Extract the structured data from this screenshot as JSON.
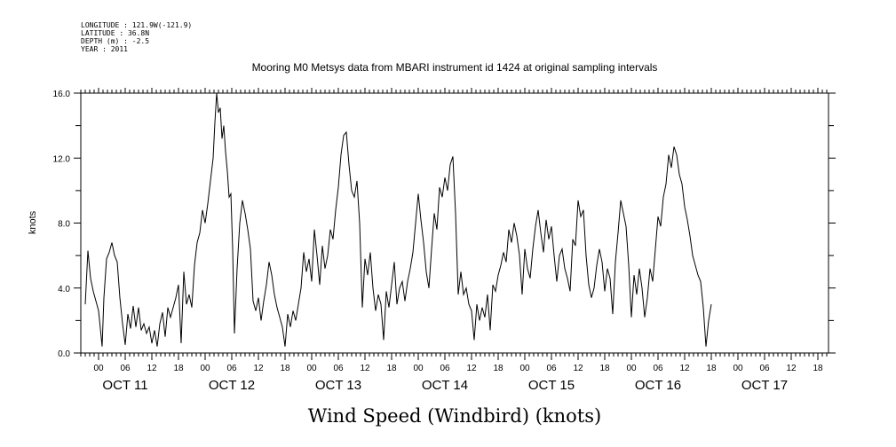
{
  "header": {
    "longitude": "LONGITUDE : 121.9W(-121.9)",
    "latitude": "LATITUDE : 36.8N",
    "depth": "DEPTH (m) : -2.5",
    "year": "YEAR : 2011"
  },
  "chart_data": {
    "type": "line",
    "title": "Mooring M0 Metsys data from MBARI instrument id 1424 at original sampling intervals",
    "xlabel": "Wind Speed (Windbird) (knots)",
    "ylabel": "knots",
    "ylim": [
      0,
      16
    ],
    "yticks": [
      "0.0",
      "4.0",
      "8.0",
      "12.0",
      "16.0"
    ],
    "x_unit": "hours from OCT 11 00:00, 2011",
    "xlim": [
      -18,
      138
    ],
    "hour_tick_labels": [
      {
        "h": 0,
        "label": "00"
      },
      {
        "h": 6,
        "label": "06"
      },
      {
        "h": 12,
        "label": "12"
      },
      {
        "h": 18,
        "label": "18"
      },
      {
        "h": 24,
        "label": "00"
      },
      {
        "h": 30,
        "label": "06"
      },
      {
        "h": 36,
        "label": "12"
      },
      {
        "h": 42,
        "label": "18"
      },
      {
        "h": 48,
        "label": "00"
      },
      {
        "h": 54,
        "label": "06"
      },
      {
        "h": 60,
        "label": "12"
      },
      {
        "h": 66,
        "label": "18"
      },
      {
        "h": 72,
        "label": "00"
      },
      {
        "h": 78,
        "label": "06"
      },
      {
        "h": 84,
        "label": "12"
      },
      {
        "h": 90,
        "label": "18"
      },
      {
        "h": 96,
        "label": "00"
      },
      {
        "h": 102,
        "label": "06"
      },
      {
        "h": 108,
        "label": "12"
      },
      {
        "h": 114,
        "label": "18"
      },
      {
        "h": 120,
        "label": "00"
      },
      {
        "h": 126,
        "label": "06"
      },
      {
        "h": 132,
        "label": "12"
      },
      {
        "h": 138,
        "label": "18"
      },
      {
        "h": 144,
        "label": "00"
      },
      {
        "h": 150,
        "label": "06"
      },
      {
        "h": 156,
        "label": "12"
      },
      {
        "h": 162,
        "label": "18"
      }
    ],
    "day_labels": [
      {
        "h": 6,
        "label": "OCT 11"
      },
      {
        "h": 30,
        "label": "OCT 12"
      },
      {
        "h": 54,
        "label": "OCT 13"
      },
      {
        "h": 78,
        "label": "OCT 14"
      },
      {
        "h": 102,
        "label": "OCT 15"
      },
      {
        "h": 126,
        "label": "OCT 16"
      },
      {
        "h": 150,
        "label": "OCT 17"
      }
    ],
    "grid": false,
    "series": [
      {
        "color": "#000000",
        "points": [
          [
            -3,
            3.0
          ],
          [
            -2.4,
            6.3
          ],
          [
            -1.8,
            4.6
          ],
          [
            -1.2,
            3.8
          ],
          [
            -0.6,
            3.2
          ],
          [
            0,
            2.6
          ],
          [
            0.4,
            1.5
          ],
          [
            0.8,
            0.4
          ],
          [
            1.2,
            3.4
          ],
          [
            1.8,
            5.8
          ],
          [
            2.4,
            6.2
          ],
          [
            3,
            6.8
          ],
          [
            3.6,
            6.0
          ],
          [
            4.2,
            5.6
          ],
          [
            4.8,
            3.4
          ],
          [
            5.4,
            1.8
          ],
          [
            6,
            0.5
          ],
          [
            6.6,
            2.4
          ],
          [
            7.2,
            1.5
          ],
          [
            7.8,
            2.9
          ],
          [
            8.4,
            1.6
          ],
          [
            9,
            2.8
          ],
          [
            9.6,
            1.4
          ],
          [
            10.2,
            1.8
          ],
          [
            10.8,
            1.2
          ],
          [
            11.4,
            1.6
          ],
          [
            12,
            0.6
          ],
          [
            12.6,
            1.4
          ],
          [
            13.2,
            0.4
          ],
          [
            13.8,
            1.8
          ],
          [
            14.4,
            2.5
          ],
          [
            15,
            1.0
          ],
          [
            15.6,
            2.8
          ],
          [
            16.2,
            2.2
          ],
          [
            16.8,
            2.8
          ],
          [
            17.4,
            3.4
          ],
          [
            18,
            4.2
          ],
          [
            18.6,
            0.6
          ],
          [
            19.2,
            5.0
          ],
          [
            19.8,
            3.0
          ],
          [
            20.4,
            3.6
          ],
          [
            21,
            2.8
          ],
          [
            21.6,
            5.4
          ],
          [
            22.2,
            6.8
          ],
          [
            22.8,
            7.4
          ],
          [
            23.4,
            8.8
          ],
          [
            24,
            8.0
          ],
          [
            24.6,
            9.2
          ],
          [
            25.2,
            10.6
          ],
          [
            25.8,
            12.0
          ],
          [
            26.2,
            14.2
          ],
          [
            26.6,
            16.0
          ],
          [
            27,
            14.8
          ],
          [
            27.4,
            15.1
          ],
          [
            27.8,
            13.2
          ],
          [
            28.2,
            14.0
          ],
          [
            28.6,
            12.4
          ],
          [
            29,
            11.2
          ],
          [
            29.4,
            9.6
          ],
          [
            29.8,
            9.8
          ],
          [
            30.2,
            6.4
          ],
          [
            30.6,
            1.2
          ],
          [
            31.2,
            5.2
          ],
          [
            31.8,
            8.0
          ],
          [
            32.4,
            9.4
          ],
          [
            33,
            8.6
          ],
          [
            33.6,
            7.6
          ],
          [
            34.2,
            6.4
          ],
          [
            34.8,
            3.2
          ],
          [
            35.4,
            2.6
          ],
          [
            36,
            3.4
          ],
          [
            36.6,
            2.0
          ],
          [
            37.2,
            3.2
          ],
          [
            37.8,
            4.2
          ],
          [
            38.4,
            5.6
          ],
          [
            39,
            4.8
          ],
          [
            39.6,
            3.6
          ],
          [
            40.2,
            2.8
          ],
          [
            40.8,
            2.2
          ],
          [
            41.4,
            1.6
          ],
          [
            42,
            0.4
          ],
          [
            42.6,
            2.4
          ],
          [
            43.2,
            1.6
          ],
          [
            43.8,
            2.6
          ],
          [
            44.4,
            2.0
          ],
          [
            45,
            3.0
          ],
          [
            45.6,
            4.0
          ],
          [
            46.2,
            6.2
          ],
          [
            46.8,
            5.0
          ],
          [
            47.4,
            5.8
          ],
          [
            48,
            4.4
          ],
          [
            48.6,
            7.6
          ],
          [
            49.2,
            6.0
          ],
          [
            49.8,
            4.2
          ],
          [
            50.4,
            6.6
          ],
          [
            51,
            5.2
          ],
          [
            51.6,
            6.0
          ],
          [
            52.2,
            7.6
          ],
          [
            52.8,
            7.0
          ],
          [
            53.4,
            8.8
          ],
          [
            54,
            10.2
          ],
          [
            54.6,
            12.2
          ],
          [
            55.2,
            13.4
          ],
          [
            55.8,
            13.6
          ],
          [
            56.4,
            11.6
          ],
          [
            57,
            10.0
          ],
          [
            57.6,
            9.6
          ],
          [
            58.2,
            10.6
          ],
          [
            58.8,
            8.0
          ],
          [
            59.4,
            2.8
          ],
          [
            60,
            5.8
          ],
          [
            60.6,
            4.8
          ],
          [
            61.2,
            6.2
          ],
          [
            61.8,
            4.0
          ],
          [
            62.4,
            2.6
          ],
          [
            63,
            3.6
          ],
          [
            63.6,
            3.0
          ],
          [
            64.2,
            0.8
          ],
          [
            64.8,
            3.8
          ],
          [
            65.4,
            2.8
          ],
          [
            66,
            4.2
          ],
          [
            66.6,
            5.6
          ],
          [
            67.2,
            3.0
          ],
          [
            67.8,
            4.0
          ],
          [
            68.4,
            4.4
          ],
          [
            69,
            3.2
          ],
          [
            69.6,
            4.4
          ],
          [
            70.2,
            5.2
          ],
          [
            70.8,
            6.2
          ],
          [
            71.4,
            8.0
          ],
          [
            72,
            9.8
          ],
          [
            72.6,
            8.2
          ],
          [
            73.2,
            6.8
          ],
          [
            73.8,
            5.0
          ],
          [
            74.4,
            4.0
          ],
          [
            75,
            6.4
          ],
          [
            75.6,
            8.6
          ],
          [
            76.2,
            7.6
          ],
          [
            76.8,
            10.2
          ],
          [
            77.4,
            9.6
          ],
          [
            78,
            10.8
          ],
          [
            78.6,
            10.0
          ],
          [
            79.2,
            11.6
          ],
          [
            79.8,
            12.1
          ],
          [
            80.4,
            8.6
          ],
          [
            81,
            3.6
          ],
          [
            81.6,
            5.0
          ],
          [
            82.2,
            3.6
          ],
          [
            82.8,
            4.0
          ],
          [
            83.4,
            3.0
          ],
          [
            84,
            2.6
          ],
          [
            84.6,
            0.8
          ],
          [
            85.2,
            3.0
          ],
          [
            85.8,
            2.0
          ],
          [
            86.4,
            2.8
          ],
          [
            87,
            2.2
          ],
          [
            87.6,
            3.6
          ],
          [
            88.2,
            1.4
          ],
          [
            88.8,
            4.2
          ],
          [
            89.4,
            3.8
          ],
          [
            90,
            4.8
          ],
          [
            90.6,
            5.4
          ],
          [
            91.2,
            6.2
          ],
          [
            91.8,
            5.6
          ],
          [
            92.4,
            7.6
          ],
          [
            93,
            6.8
          ],
          [
            93.6,
            8.0
          ],
          [
            94.2,
            7.2
          ],
          [
            94.8,
            6.0
          ],
          [
            95.4,
            3.6
          ],
          [
            96,
            6.4
          ],
          [
            96.6,
            5.2
          ],
          [
            97.2,
            4.6
          ],
          [
            97.8,
            6.4
          ],
          [
            98.4,
            7.8
          ],
          [
            99,
            8.8
          ],
          [
            99.6,
            7.4
          ],
          [
            100.2,
            6.2
          ],
          [
            100.8,
            8.2
          ],
          [
            101.4,
            7.0
          ],
          [
            102,
            7.8
          ],
          [
            102.6,
            6.0
          ],
          [
            103.2,
            4.4
          ],
          [
            103.8,
            6.0
          ],
          [
            104.4,
            6.4
          ],
          [
            105,
            5.2
          ],
          [
            105.6,
            4.6
          ],
          [
            106.2,
            3.8
          ],
          [
            106.8,
            7.0
          ],
          [
            107.4,
            6.6
          ],
          [
            108,
            9.4
          ],
          [
            108.6,
            8.4
          ],
          [
            109.2,
            8.8
          ],
          [
            109.8,
            6.0
          ],
          [
            110.4,
            4.2
          ],
          [
            111,
            3.4
          ],
          [
            111.6,
            4.0
          ],
          [
            112.2,
            5.4
          ],
          [
            112.8,
            6.4
          ],
          [
            113.4,
            5.6
          ],
          [
            114,
            3.8
          ],
          [
            114.6,
            5.2
          ],
          [
            115.2,
            4.6
          ],
          [
            115.8,
            2.4
          ],
          [
            116.4,
            5.6
          ],
          [
            117,
            7.4
          ],
          [
            117.6,
            9.4
          ],
          [
            118.2,
            8.6
          ],
          [
            118.8,
            7.8
          ],
          [
            119.4,
            5.4
          ],
          [
            120,
            2.2
          ],
          [
            120.6,
            4.8
          ],
          [
            121.2,
            3.6
          ],
          [
            121.8,
            5.2
          ],
          [
            122.4,
            4.0
          ],
          [
            123,
            2.2
          ],
          [
            123.6,
            3.4
          ],
          [
            124.2,
            5.2
          ],
          [
            124.8,
            4.4
          ],
          [
            125.4,
            6.4
          ],
          [
            126,
            8.4
          ],
          [
            126.6,
            7.8
          ],
          [
            127.2,
            9.6
          ],
          [
            127.8,
            10.4
          ],
          [
            128.4,
            12.2
          ],
          [
            129,
            11.4
          ],
          [
            129.6,
            12.7
          ],
          [
            130.2,
            12.2
          ],
          [
            130.8,
            11.0
          ],
          [
            131.4,
            10.4
          ],
          [
            132,
            9.0
          ],
          [
            132.6,
            8.2
          ],
          [
            133.2,
            7.2
          ],
          [
            133.8,
            6.0
          ],
          [
            134.4,
            5.4
          ],
          [
            135,
            4.8
          ],
          [
            135.6,
            4.4
          ],
          [
            136.2,
            2.8
          ],
          [
            136.8,
            0.4
          ],
          [
            137.4,
            2.0
          ],
          [
            138,
            3.0
          ]
        ]
      }
    ]
  }
}
